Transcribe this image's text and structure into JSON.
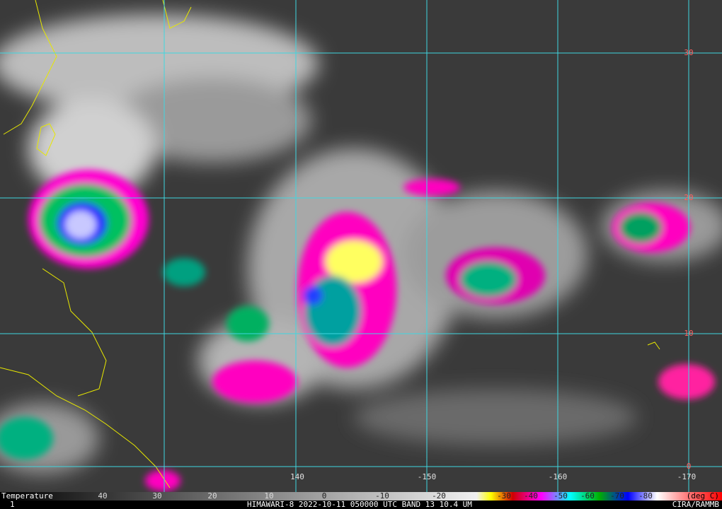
{
  "map": {
    "latitude_labels": [
      "30",
      "20",
      "10",
      "0"
    ],
    "longitude_labels": [
      "140",
      "-150",
      "-160",
      "-170"
    ]
  },
  "colorbar": {
    "title": "Temperature",
    "labels": [
      "40",
      "30",
      "20",
      "10",
      "0",
      "-10",
      "-20",
      "-30",
      "-40",
      "-50",
      "-60",
      "-70",
      "-80"
    ],
    "unit": "(deg C)"
  },
  "footer": {
    "frame": "1",
    "caption": "HIMAWARI-8 2022-10-11 050000 UTC BAND 13 10.4 UM",
    "credit": "CIRA/RAMMB"
  }
}
